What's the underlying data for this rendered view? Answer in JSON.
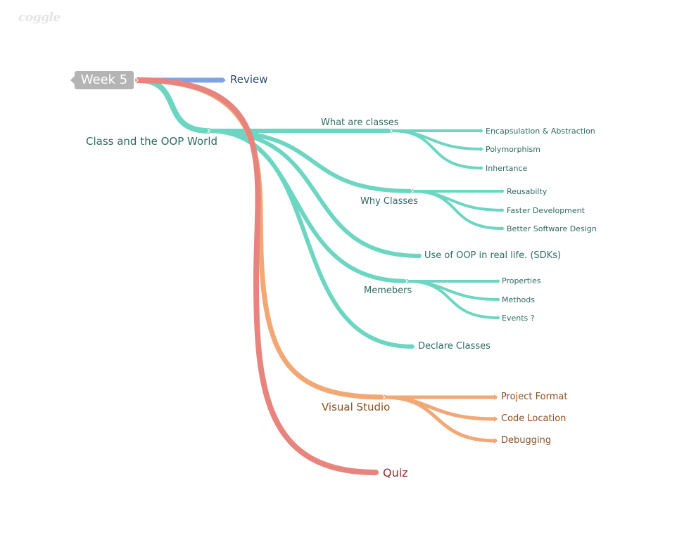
{
  "app": {
    "logo": "coggle"
  },
  "colors": {
    "review": "#7fa3e3",
    "teal": "#6dd6c2",
    "orange": "#f2a875",
    "red": "#e8847e",
    "root_bg": "#b4b4b4"
  },
  "map": {
    "root": "Week 5",
    "review": "Review",
    "oop": {
      "label": "Class and the OOP World",
      "what_are_classes": {
        "label": "What are classes",
        "children": [
          "Encapsulation & Abstraction",
          "Polymorphism",
          "Inhertance"
        ]
      },
      "why_classes": {
        "label": "Why Classes",
        "children": [
          "Reusabilty",
          "Faster Development",
          "Better Software Design"
        ]
      },
      "use_of_oop": "Use of OOP in real life. (SDKs)",
      "members": {
        "label": "Memebers",
        "children": [
          "Properties",
          "Methods",
          "Events ?"
        ]
      },
      "declare_classes": "Declare Classes"
    },
    "visual_studio": {
      "label": "Visual Studio",
      "children": [
        "Project Format",
        "Code Location",
        "Debugging"
      ]
    },
    "quiz": "Quiz"
  }
}
